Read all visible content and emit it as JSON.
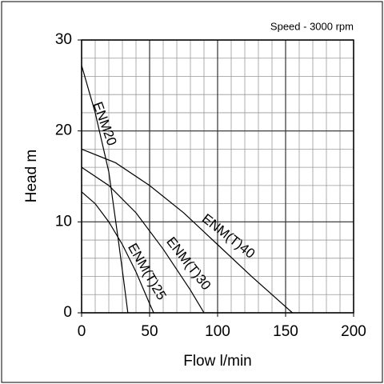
{
  "chart_data": {
    "type": "line",
    "annotation": "Speed - 3000 rpm",
    "xlabel": "Flow l/min",
    "ylabel": "Head m",
    "xlim": [
      0,
      200
    ],
    "ylim": [
      0,
      30
    ],
    "xticks": [
      0,
      50,
      100,
      150,
      200
    ],
    "yticks": [
      0,
      10,
      20,
      30
    ],
    "grid": true,
    "xminor": 10,
    "yminor": 2,
    "series": [
      {
        "name": "ENM20",
        "color": "#000000",
        "x": [
          0,
          10,
          20,
          27,
          31,
          34
        ],
        "values": [
          27.2,
          22,
          15.5,
          8,
          3.5,
          0
        ]
      },
      {
        "name": "ENM(T)25",
        "color": "#000000",
        "x": [
          0,
          10,
          20,
          30,
          40,
          50,
          53
        ],
        "values": [
          13.3,
          12,
          10,
          7.5,
          4.5,
          1,
          0
        ]
      },
      {
        "name": "ENM(T)30",
        "color": "#000000",
        "x": [
          0,
          20,
          40,
          60,
          80,
          90
        ],
        "values": [
          16,
          14,
          11,
          7,
          2.5,
          0
        ]
      },
      {
        "name": "ENM(T)40",
        "color": "#000000",
        "x": [
          0,
          25,
          50,
          75,
          100,
          125,
          155
        ],
        "values": [
          18,
          16.5,
          14,
          11,
          7.5,
          4,
          0
        ]
      }
    ]
  }
}
